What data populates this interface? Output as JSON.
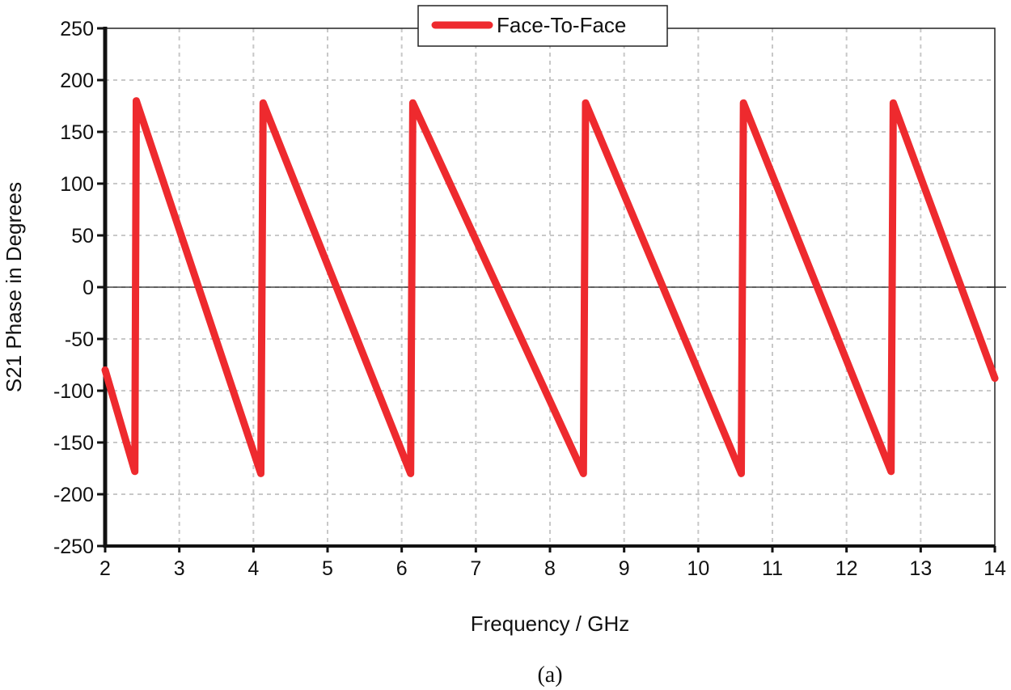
{
  "chart_data": {
    "type": "line",
    "title": "",
    "caption": "(a)",
    "xlabel": "Frequency / GHz",
    "ylabel": "S21 Phase in Degrees",
    "xlim": [
      2,
      14
    ],
    "ylim": [
      -250,
      250
    ],
    "x_ticks": [
      2,
      3,
      4,
      5,
      6,
      7,
      8,
      9,
      10,
      11,
      12,
      13,
      14
    ],
    "y_ticks": [
      250,
      200,
      150,
      100,
      50,
      0,
      -50,
      -100,
      -150,
      -200,
      -250
    ],
    "grid": true,
    "legend_position": "top-center",
    "series": [
      {
        "name": "Face-To-Face",
        "color": "#ee2a2e",
        "points": [
          [
            2.0,
            -80
          ],
          [
            2.4,
            -178
          ],
          [
            2.42,
            180
          ],
          [
            4.1,
            -180
          ],
          [
            4.13,
            178
          ],
          [
            6.12,
            -180
          ],
          [
            6.15,
            178
          ],
          [
            8.45,
            -180
          ],
          [
            8.48,
            178
          ],
          [
            10.58,
            -180
          ],
          [
            10.61,
            178
          ],
          [
            12.6,
            -178
          ],
          [
            12.63,
            178
          ],
          [
            14.0,
            -88
          ]
        ]
      }
    ]
  }
}
